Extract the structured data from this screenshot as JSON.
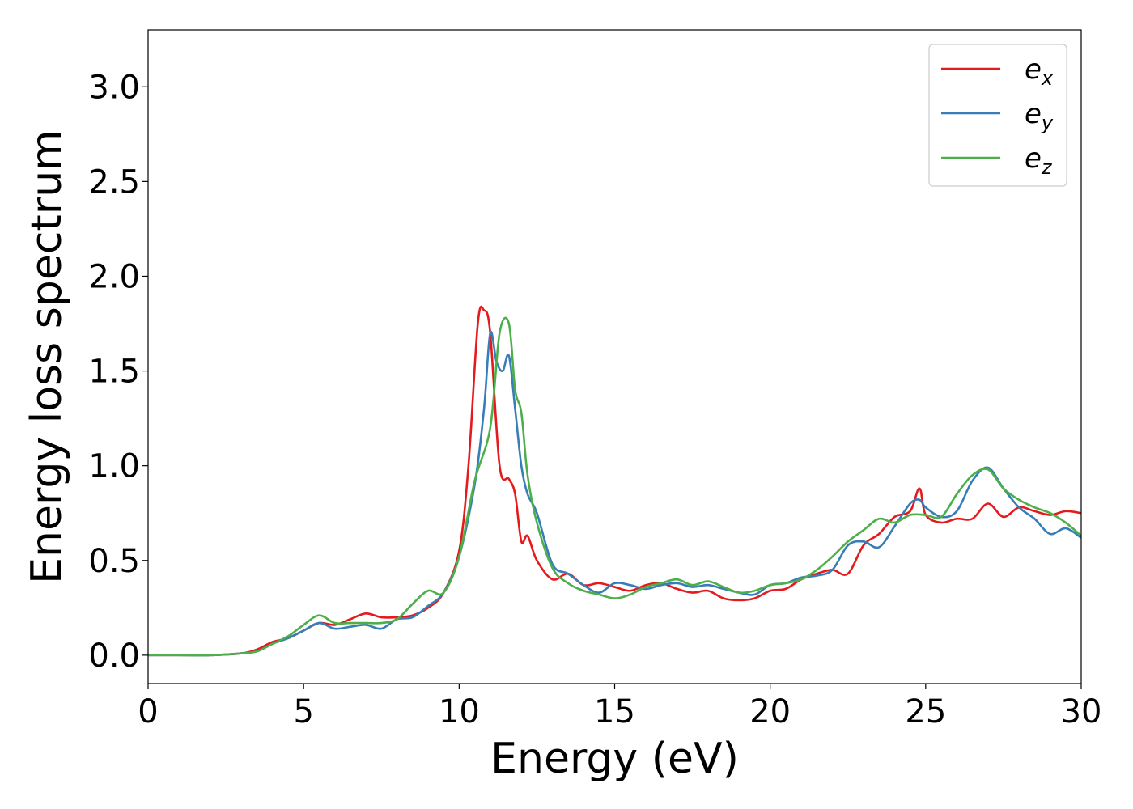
{
  "chart_data": {
    "type": "line",
    "title": "",
    "xlabel": "Energy (eV)",
    "ylabel": "Energy loss spectrum",
    "xlim": [
      0,
      30
    ],
    "ylim": [
      -0.15,
      3.3
    ],
    "xticks": [
      0,
      5,
      10,
      15,
      20,
      25,
      30
    ],
    "xtick_labels": [
      "0",
      "5",
      "10",
      "15",
      "20",
      "25",
      "30"
    ],
    "yticks": [
      0.0,
      0.5,
      1.0,
      1.5,
      2.0,
      2.5,
      3.0
    ],
    "ytick_labels": [
      "0.0",
      "0.5",
      "1.0",
      "1.5",
      "2.0",
      "2.5",
      "3.0"
    ],
    "grid": false,
    "legend_position": "top-right",
    "series": [
      {
        "name": "e_x",
        "legend_base": "e",
        "legend_sub": "x",
        "color": "#e41a1c",
        "x": [
          0,
          1,
          2,
          3,
          3.5,
          4,
          4.5,
          5,
          5.5,
          6,
          6.5,
          7,
          7.5,
          8,
          8.5,
          9,
          9.5,
          10,
          10.3,
          10.6,
          10.8,
          11,
          11.3,
          11.6,
          11.8,
          12,
          12.2,
          12.5,
          13,
          13.5,
          14,
          14.5,
          15,
          15.5,
          16,
          16.5,
          17,
          17.5,
          18,
          18.5,
          19,
          19.5,
          20,
          20.5,
          21,
          21.5,
          22,
          22.5,
          23,
          23.5,
          24,
          24.5,
          24.8,
          25,
          25.5,
          26,
          26.5,
          27,
          27.5,
          28,
          28.5,
          29,
          29.5,
          30
        ],
        "y": [
          0.0,
          0.0,
          0.0,
          0.01,
          0.03,
          0.07,
          0.09,
          0.13,
          0.17,
          0.16,
          0.19,
          0.22,
          0.2,
          0.2,
          0.21,
          0.25,
          0.33,
          0.55,
          1.0,
          1.75,
          1.82,
          1.7,
          1.0,
          0.93,
          0.85,
          0.6,
          0.63,
          0.5,
          0.4,
          0.43,
          0.37,
          0.38,
          0.36,
          0.34,
          0.37,
          0.38,
          0.35,
          0.33,
          0.34,
          0.3,
          0.29,
          0.3,
          0.34,
          0.35,
          0.4,
          0.43,
          0.45,
          0.43,
          0.58,
          0.64,
          0.73,
          0.76,
          0.88,
          0.74,
          0.7,
          0.72,
          0.72,
          0.8,
          0.73,
          0.78,
          0.76,
          0.74,
          0.76,
          0.75
        ]
      },
      {
        "name": "e_y",
        "legend_base": "e",
        "legend_sub": "y",
        "color": "#377eb8",
        "x": [
          0,
          1,
          2,
          3,
          3.5,
          4,
          4.5,
          5,
          5.5,
          6,
          6.5,
          7,
          7.5,
          8,
          8.5,
          9,
          9.5,
          10,
          10.5,
          10.8,
          11,
          11.2,
          11.4,
          11.6,
          11.8,
          12,
          12.2,
          12.5,
          13,
          13.5,
          14,
          14.5,
          15,
          15.5,
          16,
          16.5,
          17,
          17.5,
          18,
          18.5,
          19,
          19.5,
          20,
          20.5,
          21,
          21.5,
          22,
          22.5,
          23,
          23.5,
          24,
          24.5,
          24.8,
          25,
          25.5,
          26,
          26.5,
          27,
          27.5,
          28,
          28.5,
          29,
          29.5,
          30
        ],
        "y": [
          0.0,
          0.0,
          0.0,
          0.01,
          0.02,
          0.06,
          0.09,
          0.13,
          0.17,
          0.14,
          0.15,
          0.16,
          0.14,
          0.19,
          0.2,
          0.26,
          0.33,
          0.52,
          0.9,
          1.3,
          1.7,
          1.55,
          1.5,
          1.58,
          1.3,
          1.0,
          0.85,
          0.75,
          0.48,
          0.43,
          0.37,
          0.33,
          0.38,
          0.37,
          0.35,
          0.37,
          0.38,
          0.36,
          0.37,
          0.35,
          0.33,
          0.32,
          0.37,
          0.38,
          0.41,
          0.42,
          0.45,
          0.58,
          0.6,
          0.57,
          0.68,
          0.8,
          0.82,
          0.78,
          0.73,
          0.76,
          0.92,
          0.99,
          0.88,
          0.78,
          0.72,
          0.64,
          0.67,
          0.62
        ]
      },
      {
        "name": "e_z",
        "legend_base": "e",
        "legend_sub": "z",
        "color": "#4daf4a",
        "x": [
          0,
          1,
          2,
          3,
          3.5,
          4,
          4.5,
          5,
          5.5,
          6,
          6.5,
          7,
          7.5,
          8,
          8.5,
          9,
          9.5,
          10,
          10.5,
          11,
          11.3,
          11.6,
          11.8,
          12,
          12.2,
          12.5,
          13,
          13.5,
          14,
          14.5,
          15,
          15.5,
          16,
          16.5,
          17,
          17.5,
          18,
          18.5,
          19,
          19.5,
          20,
          20.5,
          21,
          21.5,
          22,
          22.5,
          23,
          23.5,
          24,
          24.5,
          25,
          25.5,
          26,
          26.5,
          27,
          27.5,
          28,
          28.5,
          29,
          29.5,
          30
        ],
        "y": [
          0.0,
          0.0,
          0.0,
          0.01,
          0.02,
          0.06,
          0.1,
          0.16,
          0.21,
          0.17,
          0.17,
          0.17,
          0.17,
          0.19,
          0.27,
          0.34,
          0.33,
          0.52,
          0.92,
          1.2,
          1.7,
          1.75,
          1.4,
          1.28,
          0.95,
          0.7,
          0.46,
          0.38,
          0.34,
          0.32,
          0.3,
          0.32,
          0.36,
          0.38,
          0.4,
          0.37,
          0.39,
          0.36,
          0.33,
          0.34,
          0.37,
          0.38,
          0.4,
          0.45,
          0.52,
          0.6,
          0.66,
          0.72,
          0.7,
          0.74,
          0.74,
          0.73,
          0.85,
          0.95,
          0.98,
          0.88,
          0.82,
          0.78,
          0.75,
          0.7,
          0.63
        ]
      }
    ]
  }
}
